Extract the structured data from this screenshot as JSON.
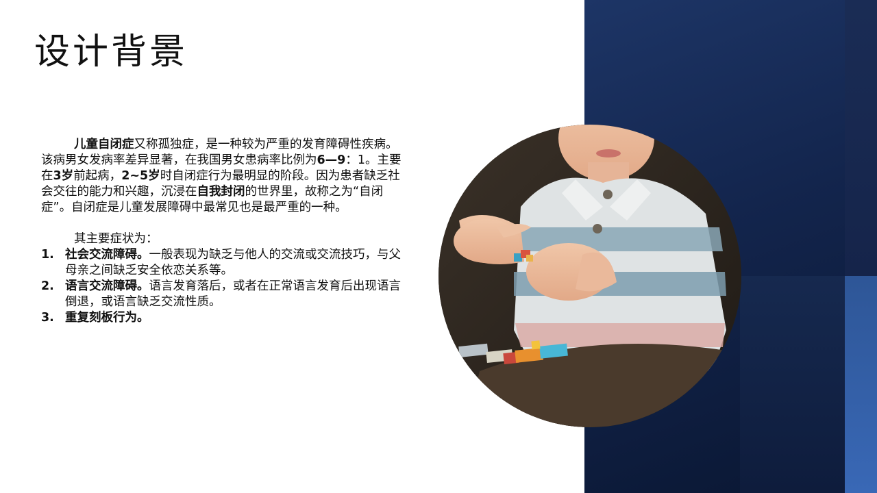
{
  "slide": {
    "title": "设计背景",
    "paragraph": {
      "p1": "儿童自闭症",
      "p2": "又称孤独症，是一种较为严重的发育障碍性疾病。该病男女发病率差异显著，在我国男女患病率比例为",
      "p3": "6—9",
      "p4": "：1。主要在",
      "p5": "3岁",
      "p6": "前起病，",
      "p7": "2~5岁",
      "p8": "时自闭症行为最明显的阶段。因为患者缺乏社会交往的能力和兴趣，沉浸在",
      "p9": "自我封闭",
      "p10": "的世界里，故称之为“自闭症”。自闭症是儿童发展障碍中最常见也是最严重的一种。"
    },
    "symptoms_intro": "其主要症状为：",
    "symptoms": [
      {
        "num": "1.",
        "head": "社会交流障碍。",
        "text": "一般表现为缺乏与他人的交流或交流技巧，与父母亲之间缺乏安全依恋关系等。"
      },
      {
        "num": "2.",
        "head": "语言交流障碍。",
        "text": "语言发育落后，或者在正常语言发育后出现语言倒退，或语言缺乏交流性质。"
      },
      {
        "num": "3.",
        "head": "重复刻板行为。",
        "text": ""
      }
    ]
  },
  "colors": {
    "panel_dark": "#13254d",
    "panel_light": "#3968b6",
    "text": "#111111"
  }
}
